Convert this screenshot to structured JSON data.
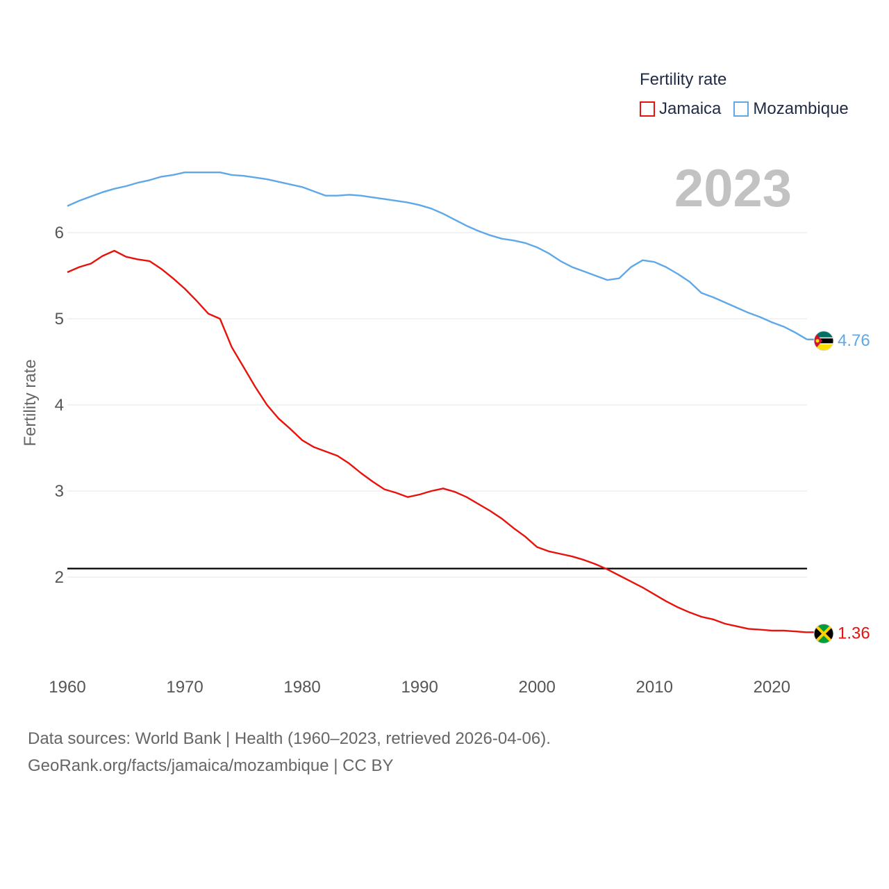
{
  "chart_data": {
    "type": "line",
    "title": "Fertility rate",
    "ylabel": "Fertility rate",
    "xlabel": "",
    "xlim": [
      1960,
      2023
    ],
    "ylim": [
      1.0,
      7.0
    ],
    "x_ticks": [
      1960,
      1970,
      1980,
      1990,
      2000,
      2010,
      2020
    ],
    "y_ticks": [
      2,
      3,
      4,
      5,
      6
    ],
    "grid": "horizontal",
    "legend_position": "top-right",
    "current_year": "2023",
    "reference_line": {
      "y": 2.1,
      "color": "#000000"
    },
    "x": [
      1960,
      1961,
      1962,
      1963,
      1964,
      1965,
      1966,
      1967,
      1968,
      1969,
      1970,
      1971,
      1972,
      1973,
      1974,
      1975,
      1976,
      1977,
      1978,
      1979,
      1980,
      1981,
      1982,
      1983,
      1984,
      1985,
      1986,
      1987,
      1988,
      1989,
      1990,
      1991,
      1992,
      1993,
      1994,
      1995,
      1996,
      1997,
      1998,
      1999,
      2000,
      2001,
      2002,
      2003,
      2004,
      2005,
      2006,
      2007,
      2008,
      2009,
      2010,
      2011,
      2012,
      2013,
      2014,
      2015,
      2016,
      2017,
      2018,
      2019,
      2020,
      2021,
      2022,
      2023
    ],
    "series": [
      {
        "name": "Jamaica",
        "color": "#e8120c",
        "end_label": "1.36",
        "flag": "jamaica-flag",
        "values": [
          5.54,
          5.6,
          5.64,
          5.73,
          5.79,
          5.72,
          5.69,
          5.67,
          5.58,
          5.47,
          5.35,
          5.21,
          5.06,
          5.0,
          4.67,
          4.44,
          4.21,
          4.0,
          3.84,
          3.72,
          3.59,
          3.51,
          3.46,
          3.41,
          3.32,
          3.21,
          3.11,
          3.02,
          2.98,
          2.93,
          2.96,
          3.0,
          3.03,
          2.99,
          2.93,
          2.85,
          2.77,
          2.68,
          2.57,
          2.47,
          2.35,
          2.3,
          2.27,
          2.24,
          2.2,
          2.15,
          2.09,
          2.02,
          1.95,
          1.88,
          1.8,
          1.72,
          1.65,
          1.59,
          1.54,
          1.51,
          1.46,
          1.43,
          1.4,
          1.39,
          1.38,
          1.38,
          1.37,
          1.36
        ]
      },
      {
        "name": "Mozambique",
        "color": "#5fa8e8",
        "end_label": "4.76",
        "flag": "mozambique-flag",
        "values": [
          6.31,
          6.37,
          6.42,
          6.47,
          6.51,
          6.54,
          6.58,
          6.61,
          6.65,
          6.67,
          6.7,
          6.7,
          6.7,
          6.7,
          6.67,
          6.66,
          6.64,
          6.62,
          6.59,
          6.56,
          6.53,
          6.48,
          6.43,
          6.43,
          6.44,
          6.43,
          6.41,
          6.39,
          6.37,
          6.35,
          6.32,
          6.28,
          6.22,
          6.15,
          6.08,
          6.02,
          5.97,
          5.93,
          5.91,
          5.88,
          5.83,
          5.76,
          5.67,
          5.6,
          5.55,
          5.5,
          5.45,
          5.47,
          5.6,
          5.68,
          5.66,
          5.6,
          5.52,
          5.43,
          5.3,
          5.25,
          5.19,
          5.13,
          5.07,
          5.02,
          4.96,
          4.91,
          4.84,
          4.76
        ]
      }
    ]
  },
  "legend": {
    "title": "Fertility rate",
    "items": [
      "Jamaica",
      "Mozambique"
    ]
  },
  "footer": {
    "line1": "Data sources: World Bank | Health (1960–2023, retrieved 2026-04-06).",
    "line2": "GeoRank.org/facts/jamaica/mozambique | CC BY"
  }
}
